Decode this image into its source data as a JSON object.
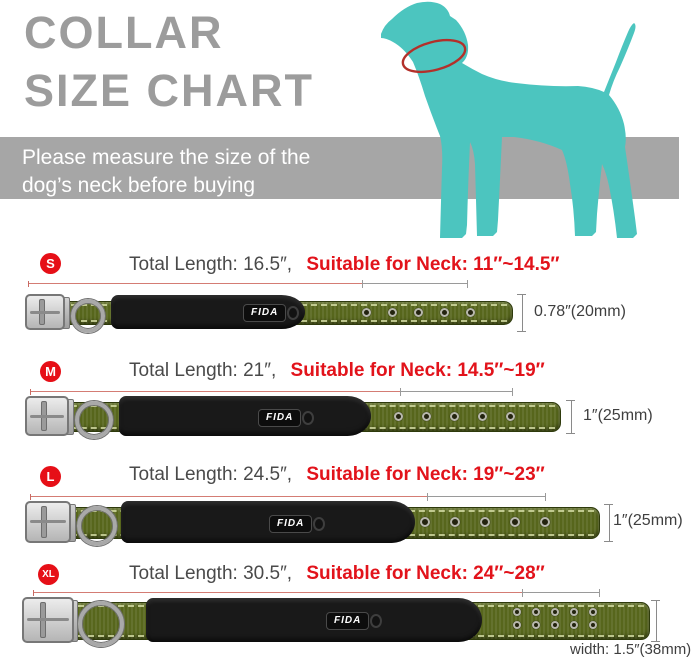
{
  "title": {
    "line1": "COLLAR",
    "line2": "SIZE CHART"
  },
  "banner": {
    "line1": "Please measure the size of the",
    "line2": "dog’s neck before buying"
  },
  "brand": {
    "label": "FIDA"
  },
  "colors": {
    "title_gray": "#9c9c9c",
    "banner_gray": "#a6a6a6",
    "dog_teal": "#4cc5bf",
    "neck_ring_red": "#b3302a",
    "accent_red": "#e2131b",
    "badge_red": "#e60f17",
    "text_dark": "#4a4a4a",
    "collar_green": "#57661c",
    "measure_gray": "#9a9a9a"
  },
  "rows": {
    "s": {
      "badge": "S",
      "total_label": "Total Length: 16.5″,",
      "neck_label": "Suitable for Neck: 11″~14.5″",
      "width_label": "0.78″(20mm)",
      "measurements": {
        "total_length_in": 16.5,
        "neck_min_in": 11,
        "neck_max_in": 14.5,
        "width_in": 0.78,
        "width_mm": 20
      },
      "eyelets": {
        "count": 5,
        "rows": 1,
        "gap": 26,
        "size": 9,
        "row_gap": 0
      }
    },
    "m": {
      "badge": "M",
      "total_label": "Total Length: 21″,",
      "neck_label": "Suitable for Neck: 14.5″~19″",
      "width_label": "1″(25mm)",
      "measurements": {
        "total_length_in": 21,
        "neck_min_in": 14.5,
        "neck_max_in": 19,
        "width_in": 1,
        "width_mm": 25
      },
      "eyelets": {
        "count": 5,
        "rows": 1,
        "gap": 28,
        "size": 9,
        "row_gap": 0
      }
    },
    "l": {
      "badge": "L",
      "total_label": "Total Length: 24.5″,",
      "neck_label": "Suitable for Neck: 19″~23″",
      "width_label": "1″(25mm)",
      "measurements": {
        "total_length_in": 24.5,
        "neck_min_in": 19,
        "neck_max_in": 23,
        "width_in": 1,
        "width_mm": 25
      },
      "eyelets": {
        "count": 5,
        "rows": 1,
        "gap": 30,
        "size": 10,
        "row_gap": 0
      }
    },
    "xl": {
      "badge": "XL",
      "total_label": "Total Length: 30.5″,",
      "neck_label": "Suitable for Neck: 24″~28″",
      "width_label": "width: 1.5″(38mm)",
      "measurements": {
        "total_length_in": 30.5,
        "neck_min_in": 24,
        "neck_max_in": 28,
        "width_in": 1.5,
        "width_mm": 38
      },
      "eyelets": {
        "count": 5,
        "rows": 2,
        "gap": 19,
        "size": 8,
        "row_gap": 13
      }
    }
  }
}
